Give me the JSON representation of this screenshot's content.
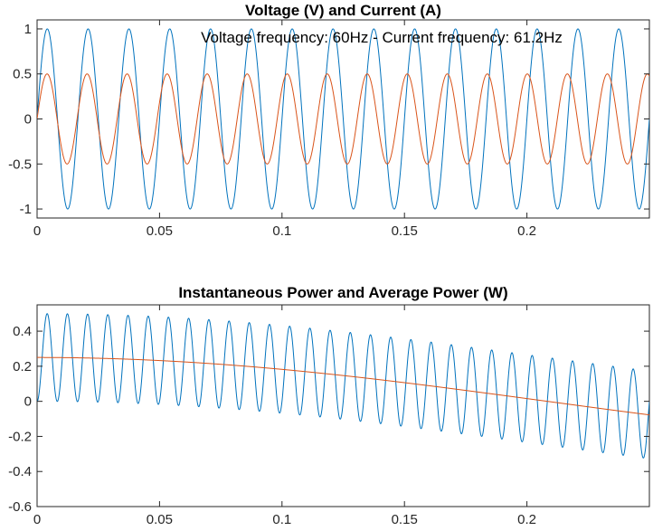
{
  "chart_data": [
    {
      "type": "line",
      "title": "Voltage (V) and Current (A)",
      "annotation": "Voltage frequency: 60Hz - Current frequency: 61.2Hz",
      "xlabel": "",
      "ylabel": "",
      "xlim": [
        0,
        0.25
      ],
      "ylim": [
        -1.1,
        1.1
      ],
      "xticks": [
        0,
        0.05,
        0.1,
        0.15,
        0.2
      ],
      "xtick_labels": [
        "0",
        "0.05",
        "0.1",
        "0.15",
        "0.2"
      ],
      "yticks": [
        -1,
        -0.5,
        0,
        0.5,
        1
      ],
      "ytick_labels": [
        "-1",
        "-0.5",
        "0",
        "0.5",
        "1"
      ],
      "grid": false,
      "series": [
        {
          "kind": "sine",
          "amplitude": 1,
          "frequency": 60,
          "color": "#0072BD"
        },
        {
          "kind": "sine",
          "amplitude": 0.5,
          "frequency": 61.2,
          "color": "#D95319"
        }
      ]
    },
    {
      "type": "line",
      "title": "Instantaneous Power and Average Power (W)",
      "xlabel": "",
      "ylabel": "",
      "xlim": [
        0,
        0.25
      ],
      "ylim": [
        -0.6,
        0.55
      ],
      "xticks": [
        0,
        0.05,
        0.1,
        0.15,
        0.2
      ],
      "xtick_labels": [
        "0",
        "0.05",
        "0.1",
        "0.15",
        "0.2"
      ],
      "yticks": [
        -0.6,
        -0.4,
        -0.2,
        0,
        0.2,
        0.4
      ],
      "ytick_labels": [
        "-0.6",
        "-0.4",
        "-0.2",
        "0",
        "0.2",
        "0.4"
      ],
      "grid": false,
      "series": [
        {
          "kind": "instantaneous-power",
          "color": "#0072BD"
        },
        {
          "kind": "average-power",
          "color": "#D95319"
        }
      ]
    }
  ]
}
